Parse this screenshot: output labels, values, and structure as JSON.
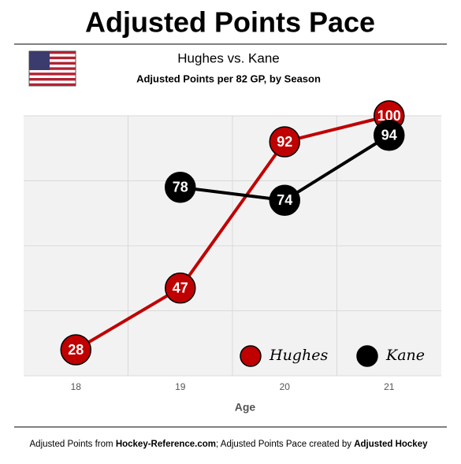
{
  "chart_data": {
    "type": "line",
    "title": "Adjusted Points Pace",
    "subtitle": "Hughes vs. Kane",
    "subtitle2": "Adjusted Points per 82 GP, by Season",
    "x_label": "Age",
    "categories": [
      "18",
      "19",
      "20",
      "21"
    ],
    "series": [
      {
        "name": "Hughes",
        "color": "#c00000",
        "values": [
          28,
          47,
          92,
          100
        ]
      },
      {
        "name": "Kane",
        "color": "#000000",
        "values": [
          null,
          78,
          74,
          94
        ]
      }
    ],
    "ylim": [
      20,
      100
    ],
    "yticks": [
      20,
      40,
      60,
      80,
      100
    ],
    "grid": true,
    "legend": "lower right",
    "footer": [
      {
        "text": "Adjusted Points from ",
        "bold": false
      },
      {
        "text": "Hockey-Reference.com",
        "bold": true
      },
      {
        "text": "; Adjusted Points Pace created by ",
        "bold": false
      },
      {
        "text": "Adjusted Hockey",
        "bold": true
      }
    ]
  }
}
